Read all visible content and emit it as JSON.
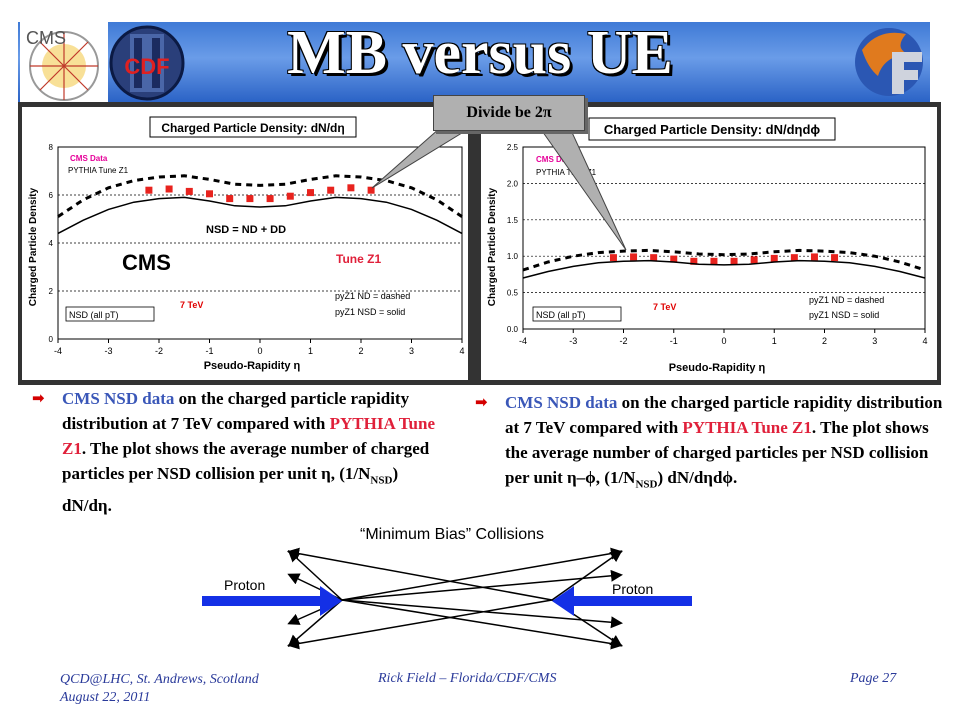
{
  "slide": {
    "title": "MB versus UE",
    "callout": "Divide be 2π",
    "logos": {
      "cms": "CMS",
      "cdf": "CDF"
    }
  },
  "chart_data": [
    {
      "type": "line",
      "title": "Charged Particle Density: dN/dη",
      "xlabel": "Pseudo-Rapidity η",
      "ylabel": "Charged Particle Density",
      "xlim": [
        -4,
        4
      ],
      "ylim": [
        0,
        8
      ],
      "xticks": [
        "-4",
        "-3",
        "-2",
        "-1",
        "0",
        "1",
        "2",
        "3",
        "4"
      ],
      "yticks": [
        "0",
        "2",
        "4",
        "6",
        "8"
      ],
      "grid": "horizontal dashed",
      "series": [
        {
          "name": "CMS Data",
          "kind": "markers",
          "color": "#e8231e",
          "x": [
            -2.2,
            -1.8,
            -1.4,
            -1.0,
            -0.6,
            -0.2,
            0.2,
            0.6,
            1.0,
            1.4,
            1.8,
            2.2
          ],
          "y": [
            6.2,
            6.25,
            6.15,
            6.05,
            5.85,
            5.85,
            5.85,
            5.95,
            6.1,
            6.2,
            6.3,
            6.2
          ]
        },
        {
          "name": "pyZ1 ND = dashed",
          "kind": "dashed",
          "color": "#000000",
          "x": [
            -4.0,
            -3.5,
            -3.0,
            -2.5,
            -2.0,
            -1.5,
            -1.0,
            -0.5,
            0.0,
            0.5,
            1.0,
            1.5,
            2.0,
            2.5,
            3.0,
            3.5,
            4.0
          ],
          "y": [
            5.1,
            5.8,
            6.3,
            6.6,
            6.75,
            6.8,
            6.65,
            6.45,
            6.4,
            6.45,
            6.65,
            6.8,
            6.75,
            6.6,
            6.3,
            5.8,
            5.1
          ]
        },
        {
          "name": "pyZ1 NSD = solid",
          "kind": "solid",
          "color": "#000000",
          "x": [
            -4.0,
            -3.5,
            -3.0,
            -2.5,
            -2.0,
            -1.5,
            -1.0,
            -0.5,
            0.0,
            0.5,
            1.0,
            1.5,
            2.0,
            2.5,
            3.0,
            3.5,
            4.0
          ],
          "y": [
            4.4,
            4.95,
            5.4,
            5.7,
            5.85,
            5.9,
            5.75,
            5.55,
            5.5,
            5.55,
            5.75,
            5.9,
            5.85,
            5.7,
            5.4,
            4.95,
            4.4
          ]
        }
      ],
      "annotations": {
        "legend_data": "CMS Data",
        "legend_mc": "PYTHIA Tune Z1",
        "nsd_formula": "NSD = ND + DD",
        "experiment": "CMS",
        "tune": "Tune Z1",
        "energy": "7 TeV",
        "selection": "NSD (all pT)",
        "nd_line": "pyZ1 ND = dashed",
        "nsd_line": "pyZ1 NSD = solid"
      }
    },
    {
      "type": "line",
      "title": "Charged Particle Density: dN/dηdϕ",
      "xlabel": "Pseudo-Rapidity η",
      "ylabel": "Charged Particle Density",
      "xlim": [
        -4,
        4
      ],
      "ylim": [
        0,
        2.5
      ],
      "xticks": [
        "-4",
        "-3",
        "-2",
        "-1",
        "0",
        "1",
        "2",
        "3",
        "4"
      ],
      "yticks": [
        "0.0",
        "0.5",
        "1.0",
        "1.5",
        "2.0",
        "2.5"
      ],
      "grid": "horizontal dashed",
      "series": [
        {
          "name": "CMS Data",
          "kind": "markers",
          "color": "#e8231e",
          "x": [
            -2.2,
            -1.8,
            -1.4,
            -1.0,
            -0.6,
            -0.2,
            0.2,
            0.6,
            1.0,
            1.4,
            1.8,
            2.2
          ],
          "y": [
            0.98,
            0.99,
            0.98,
            0.96,
            0.93,
            0.93,
            0.93,
            0.95,
            0.97,
            0.98,
            0.99,
            0.98
          ]
        },
        {
          "name": "pyZ1 ND = dashed",
          "kind": "dashed",
          "color": "#000000",
          "x": [
            -4.0,
            -3.5,
            -3.0,
            -2.5,
            -2.0,
            -1.5,
            -1.0,
            -0.5,
            0.0,
            0.5,
            1.0,
            1.5,
            2.0,
            2.5,
            3.0,
            3.5,
            4.0
          ],
          "y": [
            0.81,
            0.92,
            1.0,
            1.05,
            1.07,
            1.08,
            1.06,
            1.03,
            1.02,
            1.03,
            1.06,
            1.08,
            1.07,
            1.05,
            1.0,
            0.92,
            0.81
          ]
        },
        {
          "name": "pyZ1 NSD = solid",
          "kind": "solid",
          "color": "#000000",
          "x": [
            -4.0,
            -3.5,
            -3.0,
            -2.5,
            -2.0,
            -1.5,
            -1.0,
            -0.5,
            0.0,
            0.5,
            1.0,
            1.5,
            2.0,
            2.5,
            3.0,
            3.5,
            4.0
          ],
          "y": [
            0.7,
            0.79,
            0.86,
            0.91,
            0.93,
            0.94,
            0.92,
            0.89,
            0.88,
            0.89,
            0.92,
            0.94,
            0.93,
            0.91,
            0.86,
            0.79,
            0.7
          ]
        }
      ],
      "annotations": {
        "legend_data": "CMS Data",
        "legend_mc": "PYTHIA Tune Z1",
        "energy": "7 TeV",
        "selection": "NSD (all pT)",
        "nd_line": "pyZ1 ND = dashed",
        "nsd_line": "pyZ1 NSD = solid"
      }
    }
  ],
  "bullets": {
    "left": {
      "part1": "CMS NSD data",
      "part2": " on the charged particle rapidity distribution at 7 TeV compared with ",
      "part3": "PYTHIA Tune Z1",
      "part4": ".  The plot shows the average number of charged particles per NSD collision per unit η, (1/N",
      "sub": "NSD",
      "part5": ") dN/dη."
    },
    "right": {
      "part1": "CMS NSD data",
      "part2": " on the charged particle rapidity distribution at 7 TeV compared with ",
      "part3": "PYTHIA Tune Z1",
      "part4": ".  The plot shows the average number of charged particles per NSD collision per unit η–ϕ, (1/N",
      "sub": "NSD",
      "part5": ") dN/dηdϕ."
    }
  },
  "diagram": {
    "title": "“Minimum Bias” Collisions",
    "proton_left": "Proton",
    "proton_right": "Proton"
  },
  "footer": {
    "left_line1": "QCD@LHC, St. Andrews, Scotland",
    "left_line2": "August 22, 2011",
    "center": "Rick Field – Florida/CDF/CMS",
    "right": "Page 27"
  }
}
